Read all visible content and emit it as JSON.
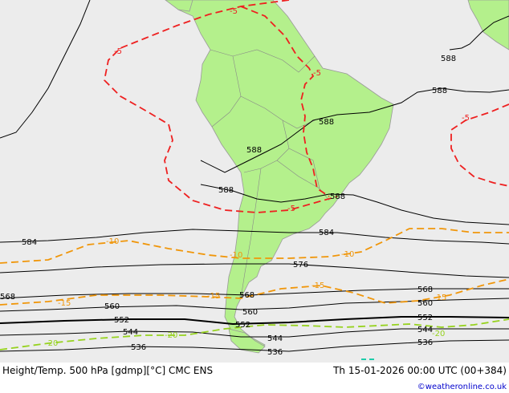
{
  "colors": {
    "sea": "#ececec",
    "land": "#b4f08c",
    "height_contour": "#000000",
    "temp_red": "#ee2020",
    "temp_orange": "#f0960a",
    "temp_green": "#96d21e",
    "temp_teal": "#00c8a0",
    "credit": "#0000cc"
  },
  "map": {
    "region": "South America",
    "height_labels": [
      "588",
      "588",
      "588",
      "588",
      "588",
      "588",
      "584",
      "584",
      "576",
      "568",
      "568",
      "568",
      "560",
      "560",
      "560",
      "552",
      "552",
      "552",
      "544",
      "544",
      "544",
      "536",
      "536",
      "536"
    ],
    "temp_labels": [
      "-5",
      "-5",
      "-5",
      "-5",
      "-5",
      "-10",
      "-10",
      "-10",
      "-15",
      "-15",
      "-15",
      "-15",
      "-20",
      "-20",
      "-20"
    ]
  },
  "footer": {
    "left": "Height/Temp. 500 hPa [gdmp][°C] CMC ENS",
    "right": "Th 15-01-2026 00:00 UTC (00+384)",
    "credit": "©weatheronline.co.uk"
  }
}
